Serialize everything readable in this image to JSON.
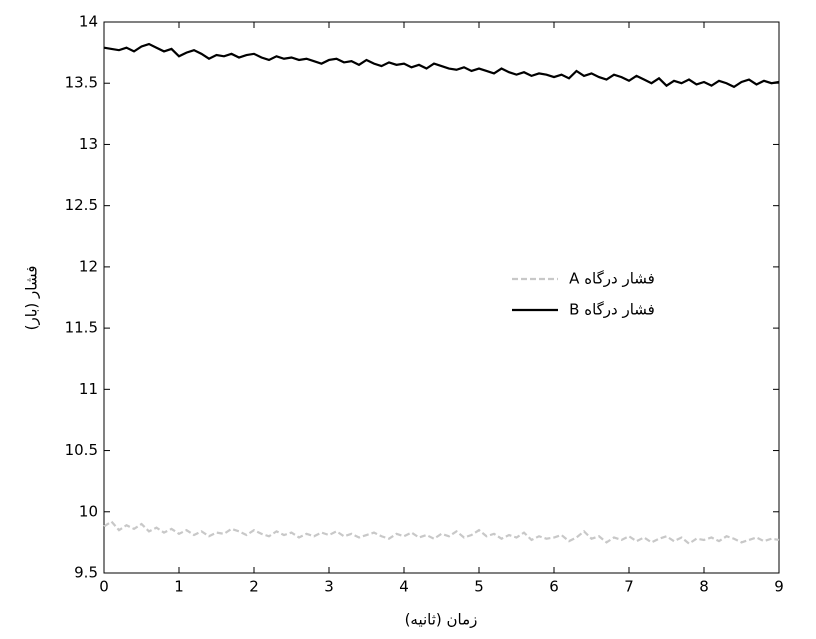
{
  "chart_data": {
    "type": "line",
    "xlabel": "زمان (ثانیه)",
    "ylabel": "فشار (بار)",
    "x": [
      0,
      0.1,
      0.2,
      0.3,
      0.4,
      0.5,
      0.6,
      0.7,
      0.8,
      0.9,
      1,
      1.1,
      1.2,
      1.3,
      1.4,
      1.5,
      1.6,
      1.7,
      1.8,
      1.9,
      2,
      2.1,
      2.2,
      2.3,
      2.4,
      2.5,
      2.6,
      2.7,
      2.8,
      2.9,
      3,
      3.1,
      3.2,
      3.3,
      3.4,
      3.5,
      3.6,
      3.7,
      3.8,
      3.9,
      4,
      4.1,
      4.2,
      4.3,
      4.4,
      4.5,
      4.6,
      4.7,
      4.8,
      4.9,
      5,
      5.1,
      5.2,
      5.3,
      5.4,
      5.5,
      5.6,
      5.7,
      5.8,
      5.9,
      6,
      6.1,
      6.2,
      6.3,
      6.4,
      6.5,
      6.6,
      6.7,
      6.8,
      6.9,
      7,
      7.1,
      7.2,
      7.3,
      7.4,
      7.5,
      7.6,
      7.7,
      7.8,
      7.9,
      8,
      8.1,
      8.2,
      8.3,
      8.4,
      8.5,
      8.6,
      8.7,
      8.8,
      8.9,
      9
    ],
    "series": [
      {
        "name": "فشار درگاه A",
        "color": "#c8c8c8",
        "style": "dashed",
        "values": [
          9.88,
          9.92,
          9.85,
          9.89,
          9.86,
          9.9,
          9.84,
          9.87,
          9.83,
          9.86,
          9.82,
          9.85,
          9.81,
          9.84,
          9.8,
          9.83,
          9.82,
          9.86,
          9.84,
          9.81,
          9.85,
          9.82,
          9.8,
          9.84,
          9.81,
          9.83,
          9.79,
          9.82,
          9.8,
          9.83,
          9.81,
          9.84,
          9.8,
          9.82,
          9.79,
          9.81,
          9.83,
          9.8,
          9.78,
          9.82,
          9.8,
          9.83,
          9.79,
          9.81,
          9.78,
          9.82,
          9.8,
          9.84,
          9.79,
          9.81,
          9.85,
          9.8,
          9.82,
          9.78,
          9.81,
          9.79,
          9.83,
          9.77,
          9.8,
          9.78,
          9.79,
          9.81,
          9.76,
          9.79,
          9.84,
          9.78,
          9.8,
          9.75,
          9.79,
          9.77,
          9.8,
          9.76,
          9.79,
          9.75,
          9.78,
          9.8,
          9.76,
          9.79,
          9.74,
          9.78,
          9.77,
          9.79,
          9.76,
          9.8,
          9.78,
          9.75,
          9.77,
          9.79,
          9.76,
          9.78,
          9.77
        ]
      },
      {
        "name": "فشار درگاه B",
        "color": "#000000",
        "style": "solid",
        "values": [
          13.79,
          13.78,
          13.77,
          13.79,
          13.76,
          13.8,
          13.82,
          13.79,
          13.76,
          13.78,
          13.72,
          13.75,
          13.77,
          13.74,
          13.7,
          13.73,
          13.72,
          13.74,
          13.71,
          13.73,
          13.74,
          13.71,
          13.69,
          13.72,
          13.7,
          13.71,
          13.69,
          13.7,
          13.68,
          13.66,
          13.69,
          13.7,
          13.67,
          13.68,
          13.65,
          13.69,
          13.66,
          13.64,
          13.67,
          13.65,
          13.66,
          13.63,
          13.65,
          13.62,
          13.66,
          13.64,
          13.62,
          13.61,
          13.63,
          13.6,
          13.62,
          13.6,
          13.58,
          13.62,
          13.59,
          13.57,
          13.59,
          13.56,
          13.58,
          13.57,
          13.55,
          13.57,
          13.54,
          13.6,
          13.56,
          13.58,
          13.55,
          13.53,
          13.57,
          13.55,
          13.52,
          13.56,
          13.53,
          13.5,
          13.54,
          13.48,
          13.52,
          13.5,
          13.53,
          13.49,
          13.51,
          13.48,
          13.52,
          13.5,
          13.47,
          13.51,
          13.53,
          13.49,
          13.52,
          13.5,
          13.51
        ]
      }
    ],
    "xlim": [
      0,
      9
    ],
    "xticks": [
      0,
      1,
      2,
      3,
      4,
      5,
      6,
      7,
      8,
      9
    ],
    "ylim": [
      9.5,
      14
    ],
    "yticks": [
      9.5,
      10,
      10.5,
      11,
      11.5,
      12,
      12.5,
      13,
      13.5,
      14
    ],
    "grid": false,
    "legend": "right"
  }
}
